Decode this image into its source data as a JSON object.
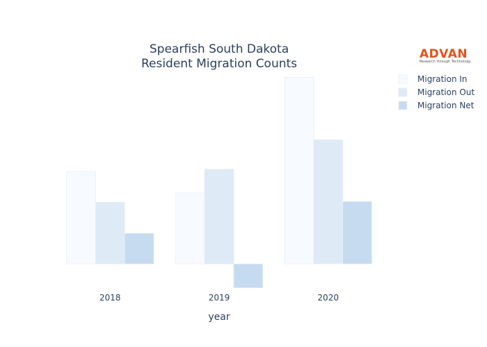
{
  "chart_data": {
    "type": "bar",
    "title": [
      "Spearfish South Dakota",
      "Resident Migration Counts"
    ],
    "xlabel": "year",
    "ylabel": "",
    "categories": [
      "2018",
      "2019",
      "2020"
    ],
    "series": [
      {
        "name": "Migration In",
        "values": [
          151,
          116,
          305
        ],
        "color": "#f7fbff"
      },
      {
        "name": "Migration Out",
        "values": [
          101,
          155,
          203
        ],
        "color": "#deebf7"
      },
      {
        "name": "Migration Net",
        "values": [
          50,
          -39,
          102
        ],
        "color": "#c6dbef"
      }
    ],
    "ylim": [
      -45,
      310
    ],
    "grid": false,
    "legend_position": "top-right"
  },
  "logo": {
    "name": "ADVAN",
    "tagline": "Research through Technology"
  }
}
